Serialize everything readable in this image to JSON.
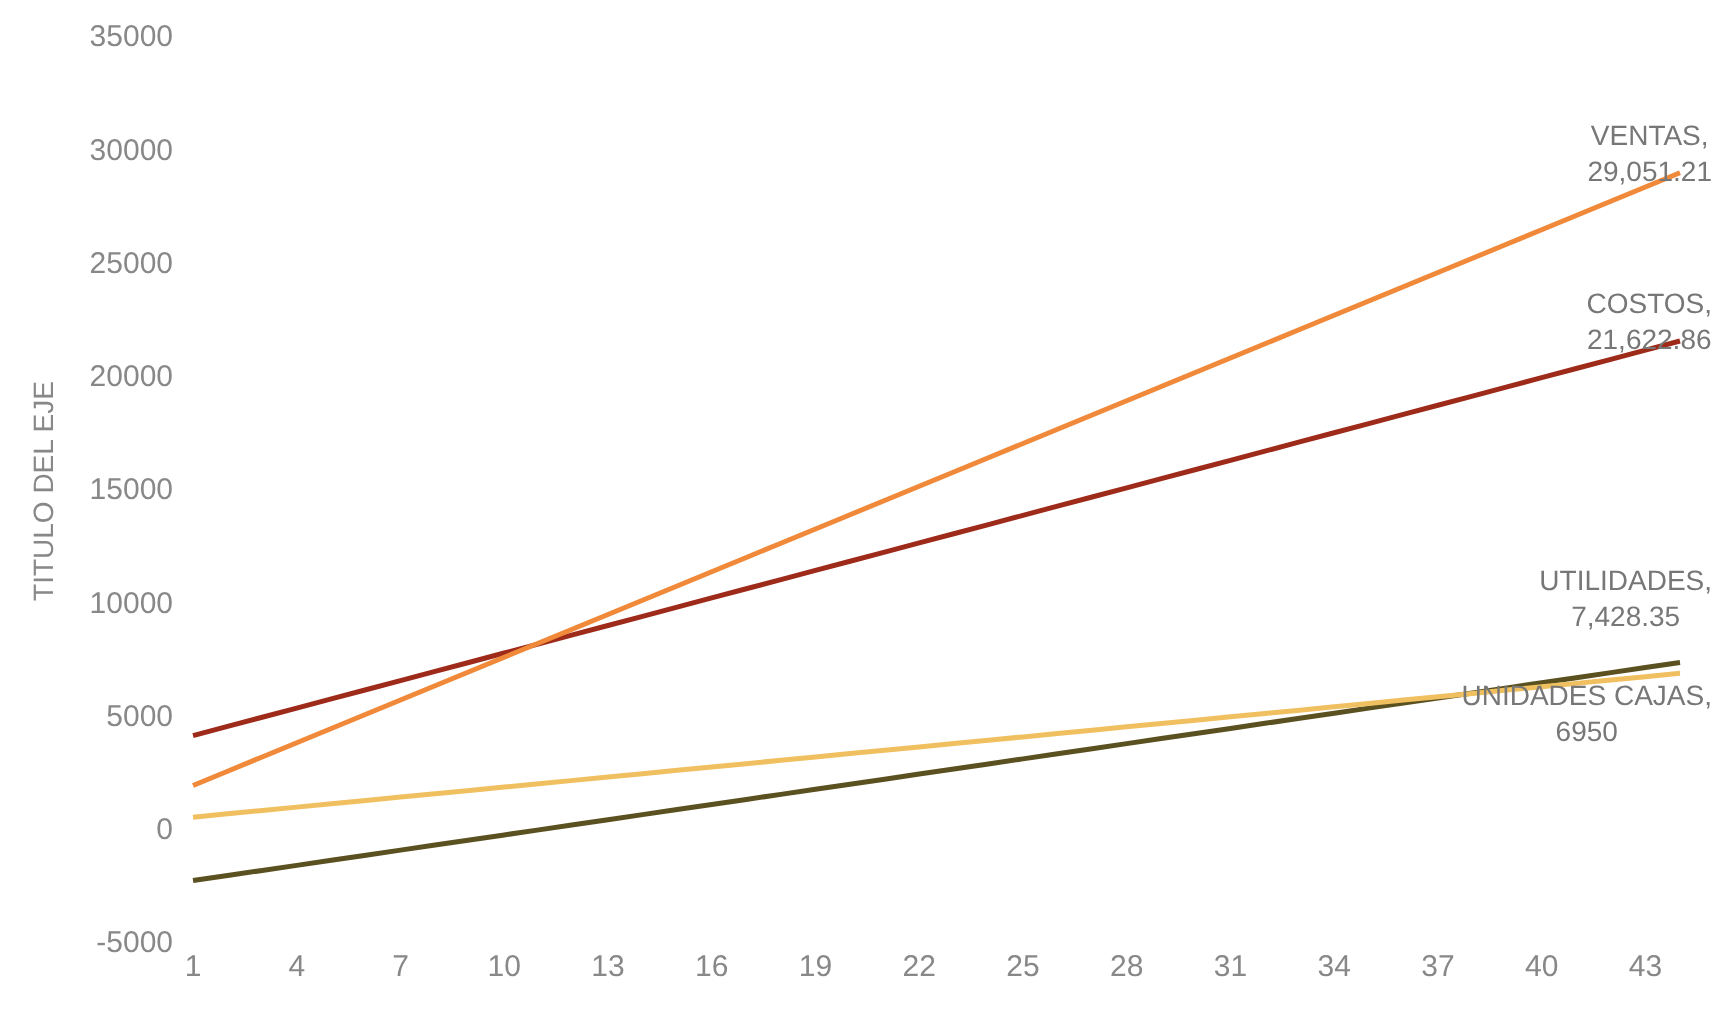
{
  "chart_data": {
    "type": "line",
    "ylabel": "TITULO DEL EJE",
    "categories": [
      "1",
      null,
      null,
      "4",
      null,
      null,
      "7",
      null,
      null,
      "10",
      null,
      null,
      "13",
      null,
      null,
      "16",
      null,
      null,
      "19",
      null,
      null,
      "22",
      null,
      null,
      "25",
      null,
      null,
      "28",
      null,
      null,
      "31",
      null,
      null,
      "34",
      null,
      null,
      "37",
      null,
      null,
      "40",
      null,
      null,
      "43",
      null
    ],
    "ylim": [
      -5000,
      35000
    ],
    "yticks": [
      -5000,
      0,
      5000,
      10000,
      15000,
      20000,
      25000,
      30000,
      35000
    ],
    "grid": false,
    "legend": false,
    "marker": "none",
    "line_style": "solid",
    "series": [
      {
        "color": "#f08a3a",
        "values": [
          2000,
          2629,
          3258,
          3887,
          4516,
          5146,
          5775,
          6404,
          7033,
          7662,
          8291,
          8920,
          9549,
          10178,
          10807,
          11437,
          12066,
          12695,
          13324,
          13953,
          14582,
          15211,
          15840,
          16469,
          17098,
          17728,
          18357,
          18986,
          19615,
          20244,
          20873,
          21502,
          22131,
          22760,
          23389,
          24019,
          24648,
          25277,
          25906,
          26535,
          27164,
          27793,
          28422,
          29051.21
        ],
        "value_labels": [
          null,
          null,
          null,
          null,
          null,
          null,
          null,
          null,
          null,
          null,
          null,
          null,
          null,
          null,
          null,
          null,
          null,
          null,
          null,
          null,
          null,
          null,
          null,
          null,
          null,
          null,
          null,
          null,
          null,
          null,
          null,
          null,
          null,
          null,
          null,
          null,
          null,
          null,
          null,
          null,
          null,
          null,
          null,
          "VENTAS, 29,051.21"
        ]
      },
      {
        "color": "#9e2a1a",
        "values": [
          4200,
          4605,
          5010,
          5416,
          5821,
          6226,
          6631,
          7036,
          7441,
          7847,
          8252,
          8657,
          9062,
          9467,
          9873,
          10278,
          10683,
          11088,
          11493,
          11898,
          12304,
          12709,
          13114,
          13519,
          13924,
          14329,
          14735,
          15140,
          15545,
          15950,
          16355,
          16760,
          17166,
          17571,
          17976,
          18381,
          18786,
          19192,
          19597,
          20002,
          20407,
          20812,
          21217,
          21622.86
        ],
        "value_labels": [
          null,
          null,
          null,
          null,
          null,
          null,
          null,
          null,
          null,
          null,
          null,
          null,
          null,
          null,
          null,
          null,
          null,
          null,
          null,
          null,
          null,
          null,
          null,
          null,
          null,
          null,
          null,
          null,
          null,
          null,
          null,
          null,
          null,
          null,
          null,
          null,
          null,
          null,
          null,
          null,
          null,
          null,
          null,
          "COSTOS, 21,622.86"
        ]
      },
      {
        "color": "#f0c060",
        "values": [
          600,
          748,
          895,
          1043,
          1191,
          1338,
          1486,
          1634,
          1781,
          1929,
          2077,
          2224,
          2372,
          2520,
          2667,
          2815,
          2963,
          3110,
          3258,
          3406,
          3553,
          3701,
          3849,
          3996,
          4144,
          4292,
          4439,
          4587,
          4735,
          4882,
          5030,
          5178,
          5325,
          5473,
          5621,
          5768,
          5916,
          6064,
          6211,
          6359,
          6507,
          6654,
          6802,
          6950
        ],
        "value_labels": [
          null,
          null,
          null,
          null,
          null,
          null,
          null,
          null,
          null,
          null,
          null,
          null,
          null,
          null,
          null,
          null,
          null,
          null,
          null,
          null,
          null,
          null,
          null,
          null,
          null,
          null,
          null,
          null,
          null,
          null,
          null,
          null,
          null,
          null,
          null,
          null,
          null,
          null,
          null,
          null,
          null,
          null,
          null,
          "UNIDADES CAJAS, 6950"
        ]
      },
      {
        "color": "#5a5020",
        "values": [
          -2200,
          -1976,
          -1752,
          -1529,
          -1305,
          -1080,
          -856,
          -632,
          -408,
          -185,
          39,
          263,
          487,
          711,
          934,
          1159,
          1383,
          1607,
          1831,
          2055,
          2278,
          2502,
          2726,
          2950,
          3174,
          3399,
          3622,
          3846,
          4070,
          4294,
          4518,
          4742,
          4965,
          5189,
          5413,
          5638,
          5862,
          6085,
          6309,
          6533,
          6757,
          6981,
          7205,
          7428.35
        ],
        "value_labels": [
          null,
          null,
          null,
          null,
          null,
          null,
          null,
          null,
          null,
          null,
          null,
          null,
          null,
          null,
          null,
          null,
          null,
          null,
          null,
          null,
          null,
          null,
          null,
          null,
          null,
          null,
          null,
          null,
          null,
          null,
          null,
          null,
          null,
          null,
          null,
          null,
          null,
          null,
          null,
          null,
          null,
          null,
          null,
          "UTILIDADES, 7,428.35"
        ]
      }
    ]
  }
}
